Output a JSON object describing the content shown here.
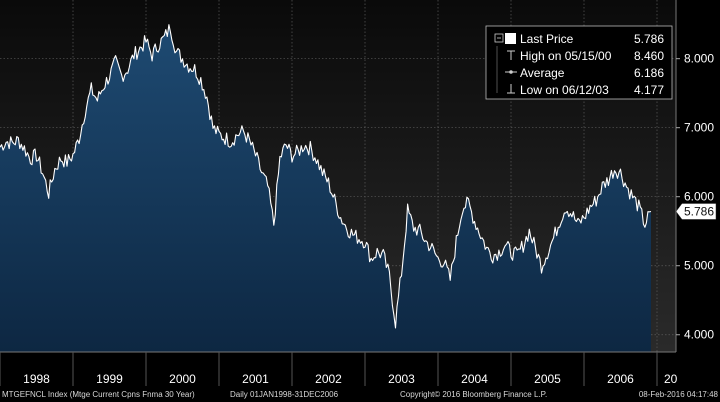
{
  "chart_data": {
    "type": "area",
    "y_ticks": [
      "4.000",
      "5.000",
      "6.000",
      "7.000",
      "8.000"
    ],
    "ylim": [
      3.75,
      8.85
    ],
    "x_year_labels": [
      "1998",
      "1999",
      "2000",
      "2001",
      "2002",
      "2003",
      "2004",
      "2005",
      "2006",
      "20"
    ],
    "last_value_label": "5.786",
    "legend": {
      "last_price_label": "Last Price",
      "last_price_value": "5.786",
      "high_label": "High on 05/15/00",
      "high_value": "8.460",
      "average_label": "Average",
      "average_value": "6.186",
      "low_label": "Low on 06/12/03",
      "low_value": "4.177"
    },
    "series": [
      {
        "x": [
          "1998-01",
          "1998-02",
          "1998-03",
          "1998-04",
          "1998-05",
          "1998-06",
          "1998-07",
          "1998-08",
          "1998-09",
          "1998-10",
          "1998-11",
          "1998-12",
          "1999-01",
          "1999-02",
          "1999-03",
          "1999-04",
          "1999-05",
          "1999-06",
          "1999-07",
          "1999-08",
          "1999-09",
          "1999-10",
          "1999-11",
          "1999-12",
          "2000-01",
          "2000-02",
          "2000-03",
          "2000-04",
          "2000-05",
          "2000-06",
          "2000-07",
          "2000-08",
          "2000-09",
          "2000-10",
          "2000-11",
          "2000-12",
          "2001-01",
          "2001-02",
          "2001-03",
          "2001-04",
          "2001-05",
          "2001-06",
          "2001-07",
          "2001-08",
          "2001-09",
          "2001-10",
          "2001-11",
          "2001-12",
          "2002-01",
          "2002-02",
          "2002-03",
          "2002-04",
          "2002-05",
          "2002-06",
          "2002-07",
          "2002-08",
          "2002-09",
          "2002-10",
          "2002-11",
          "2002-12",
          "2003-01",
          "2003-02",
          "2003-03",
          "2003-04",
          "2003-05",
          "2003-06",
          "2003-07",
          "2003-08",
          "2003-09",
          "2003-10",
          "2003-11",
          "2003-12",
          "2004-01",
          "2004-02",
          "2004-03",
          "2004-04",
          "2004-05",
          "2004-06",
          "2004-07",
          "2004-08",
          "2004-09",
          "2004-10",
          "2004-11",
          "2004-12",
          "2005-01",
          "2005-02",
          "2005-03",
          "2005-04",
          "2005-05",
          "2005-06",
          "2005-07",
          "2005-08",
          "2005-09",
          "2005-10",
          "2005-11",
          "2005-12",
          "2006-01",
          "2006-02",
          "2006-03",
          "2006-04",
          "2006-05",
          "2006-06",
          "2006-07",
          "2006-08",
          "2006-09",
          "2006-10",
          "2006-11",
          "2006-12"
        ],
        "values": [
          6.72,
          6.8,
          6.78,
          6.82,
          6.7,
          6.55,
          6.6,
          6.35,
          6.05,
          6.4,
          6.55,
          6.5,
          6.6,
          6.85,
          7.25,
          7.55,
          7.4,
          7.6,
          7.75,
          7.95,
          7.75,
          7.85,
          8.05,
          8.15,
          8.25,
          8.05,
          8.2,
          8.3,
          8.46,
          8.1,
          8.0,
          7.9,
          7.85,
          7.7,
          7.45,
          7.0,
          6.9,
          6.85,
          6.8,
          6.9,
          6.95,
          6.8,
          6.6,
          6.35,
          6.15,
          5.6,
          6.55,
          6.75,
          6.6,
          6.65,
          6.75,
          6.7,
          6.55,
          6.35,
          6.2,
          5.95,
          5.7,
          5.55,
          5.45,
          5.4,
          5.35,
          5.1,
          5.2,
          5.15,
          4.85,
          4.18,
          4.9,
          5.8,
          5.55,
          5.5,
          5.35,
          5.25,
          5.1,
          5.05,
          4.8,
          5.35,
          5.85,
          5.9,
          5.65,
          5.45,
          5.25,
          5.15,
          5.2,
          5.3,
          5.2,
          5.15,
          5.3,
          5.5,
          5.25,
          5.0,
          5.2,
          5.4,
          5.65,
          5.85,
          5.75,
          5.6,
          5.7,
          5.85,
          5.95,
          6.15,
          6.25,
          6.4,
          6.35,
          6.15,
          6.0,
          5.85,
          5.6,
          5.786
        ]
      }
    ]
  },
  "footer": {
    "ticker": "MTGEFNCL Index (Mtge Current Cpns Fnma 30 Year)",
    "range": "Daily 01JAN1998-31DEC2006",
    "copyright": "Copyright© 2016 Bloomberg Finance L.P.",
    "timestamp": "08-Feb-2016 04:17:48"
  },
  "colors": {
    "background": "#000000",
    "plot_top": "#0a0a0a",
    "plot_bottom": "#2a2a2a",
    "area_top": "#1e4a72",
    "area_bottom": "#0e2a45",
    "line": "#ffffff",
    "grid": "#5a5a5a"
  }
}
